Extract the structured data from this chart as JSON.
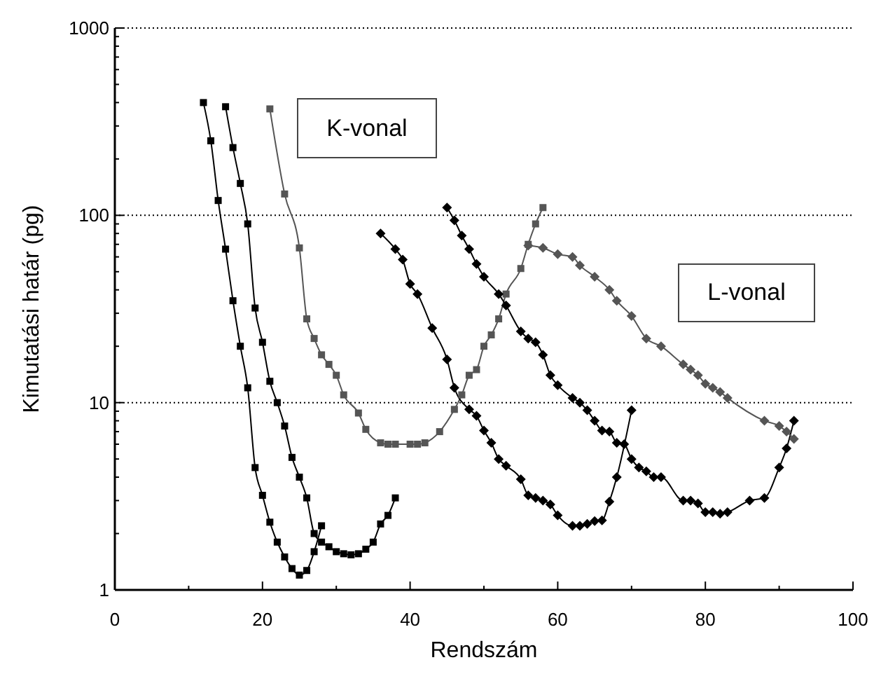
{
  "chart_data": {
    "type": "line",
    "xlabel": "Rendszám",
    "ylabel": "Kimutatási határ (pg)",
    "annotations": [
      "K-vonal",
      "L-vonal"
    ],
    "xlim": [
      0,
      100
    ],
    "xticks": [
      0,
      {
        "value": 10,
        "label": null
      },
      20,
      {
        "value": 30,
        "label": null
      },
      40,
      {
        "value": 50,
        "label": null
      },
      60,
      {
        "value": 70,
        "label": null
      },
      80,
      {
        "value": 90,
        "label": null
      },
      100
    ],
    "ylim": [
      1,
      1000
    ],
    "yticks": [
      1,
      {
        "value": 2,
        "label": null
      },
      {
        "value": 3,
        "label": null
      },
      {
        "value": 4,
        "label": null
      },
      {
        "value": 5,
        "label": null
      },
      {
        "value": 6,
        "label": null
      },
      {
        "value": 7,
        "label": null
      },
      {
        "value": 8,
        "label": null
      },
      {
        "value": 9,
        "label": null
      },
      10,
      {
        "value": 20,
        "label": null
      },
      {
        "value": 30,
        "label": null
      },
      {
        "value": 40,
        "label": null
      },
      {
        "value": 50,
        "label": null
      },
      {
        "value": 60,
        "label": null
      },
      {
        "value": 70,
        "label": null
      },
      {
        "value": 80,
        "label": null
      },
      {
        "value": 90,
        "label": null
      },
      100,
      {
        "value": 200,
        "label": null
      },
      {
        "value": 300,
        "label": null
      },
      {
        "value": 400,
        "label": null
      },
      {
        "value": 500,
        "label": null
      },
      {
        "value": 600,
        "label": null
      },
      {
        "value": 700,
        "label": null
      },
      {
        "value": 800,
        "label": null
      },
      {
        "value": 900,
        "label": null
      },
      1000
    ],
    "log": "y",
    "grid": "y",
    "line_style": "solid",
    "series": [
      {
        "color": "#000000",
        "marker": "square",
        "x": [
          12,
          13,
          14,
          15,
          16,
          17,
          18,
          19,
          20,
          21,
          22,
          23,
          24,
          25,
          26,
          27,
          28
        ],
        "values": [
          400,
          250,
          120,
          66,
          35,
          20,
          12,
          4.5,
          3.2,
          2.3,
          1.8,
          1.5,
          1.3,
          1.2,
          1.27,
          1.6,
          2.2
        ]
      },
      {
        "color": "#000000",
        "marker": "square",
        "x": [
          15,
          16,
          17,
          18,
          19,
          20,
          21,
          22,
          23,
          24,
          25,
          26,
          27,
          28,
          29,
          30,
          31,
          32,
          33,
          34,
          35,
          36,
          37,
          38
        ],
        "values": [
          380,
          230,
          148,
          90,
          32,
          21,
          13,
          10,
          7.5,
          5.1,
          4,
          3.1,
          2,
          1.8,
          1.7,
          1.6,
          1.56,
          1.54,
          1.56,
          1.65,
          1.8,
          2.25,
          2.5,
          3.1
        ]
      },
      {
        "color": "#555555",
        "marker": "square",
        "x": [
          21,
          23,
          25,
          26,
          27,
          28,
          29,
          30,
          31,
          33,
          34,
          36,
          37,
          38,
          40,
          41,
          42,
          44,
          46,
          47,
          48,
          49,
          50,
          51,
          52,
          53,
          55,
          56,
          57,
          58
        ],
        "values": [
          370,
          130,
          67,
          28,
          22,
          18,
          16,
          14,
          11,
          8.8,
          7.2,
          6.1,
          6,
          6,
          6,
          6,
          6.1,
          7,
          9.2,
          11,
          14,
          15,
          20,
          23,
          28,
          38,
          52,
          70,
          90,
          110
        ]
      },
      {
        "color": "#000000",
        "marker": "diamond",
        "x": [
          36,
          38,
          39,
          40,
          41,
          43,
          45,
          46,
          48,
          49,
          50,
          51,
          52,
          53,
          55,
          56,
          57,
          58,
          59,
          60,
          62,
          63,
          64,
          65,
          66,
          67,
          68,
          70
        ],
        "values": [
          80,
          66,
          58,
          43,
          38,
          25,
          17,
          12,
          9.2,
          8.5,
          7.1,
          6.1,
          5,
          4.6,
          3.9,
          3.2,
          3.1,
          3,
          2.86,
          2.5,
          2.2,
          2.2,
          2.25,
          2.33,
          2.35,
          2.96,
          4,
          9.1
        ]
      },
      {
        "color": "#000000",
        "marker": "diamond",
        "x": [
          45,
          46,
          47,
          48,
          49,
          50,
          52,
          53,
          55,
          56,
          57,
          58,
          59,
          60,
          62,
          63,
          64,
          65,
          66,
          67,
          68,
          69,
          70,
          71,
          72,
          73,
          74,
          77,
          78,
          79,
          80,
          81,
          82,
          83,
          86,
          88,
          90,
          91,
          92
        ],
        "values": [
          110,
          94,
          78,
          66,
          55,
          47,
          38,
          33,
          24,
          22,
          21,
          18,
          14,
          12.4,
          10.6,
          10,
          9.1,
          8,
          7.1,
          7,
          6.1,
          6,
          5,
          4.5,
          4.3,
          4,
          4,
          3,
          3,
          2.9,
          2.6,
          2.6,
          2.55,
          2.6,
          3,
          3.1,
          4.5,
          5.7,
          8
        ]
      },
      {
        "color": "#555555",
        "marker": "diamond",
        "x": [
          56,
          58,
          60,
          62,
          63,
          65,
          67,
          68,
          70,
          72,
          74,
          77,
          78,
          79,
          80,
          81,
          82,
          83,
          88,
          90,
          91,
          92
        ],
        "values": [
          69,
          67,
          62,
          60,
          54,
          47,
          40,
          35,
          29,
          22,
          20,
          16,
          15,
          14,
          12.6,
          12,
          11.4,
          10.6,
          8,
          7.5,
          7,
          6.4
        ]
      }
    ]
  }
}
